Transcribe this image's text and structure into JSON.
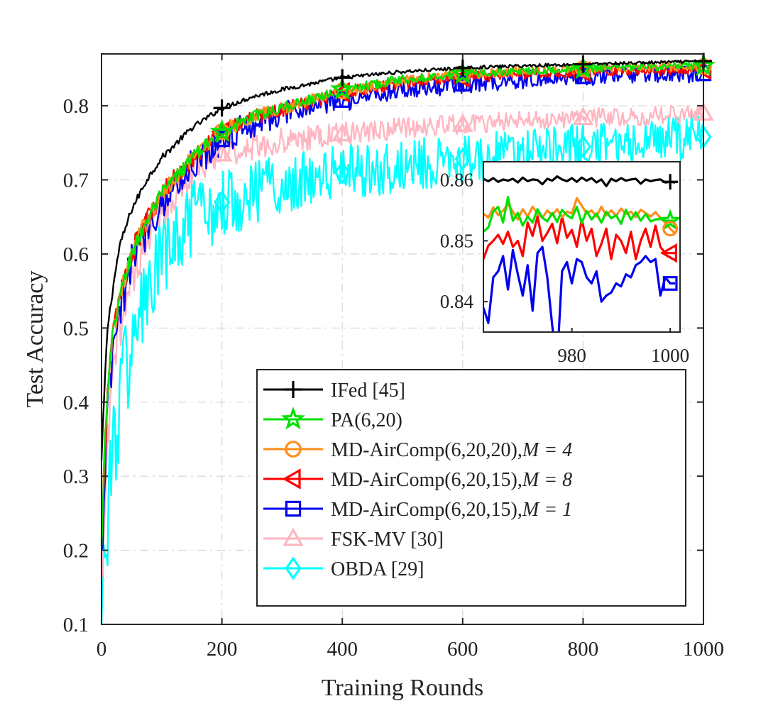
{
  "chart_data": {
    "type": "line",
    "title": "",
    "xlabel": "Training Rounds",
    "ylabel": "Test Accuracy",
    "xlim": [
      0,
      1000
    ],
    "ylim": [
      0.1,
      0.87
    ],
    "xticks": [
      0,
      200,
      400,
      600,
      800,
      1000
    ],
    "xtick_labels": [
      "0",
      "200",
      "400",
      "600",
      "800",
      "1000"
    ],
    "yticks": [
      0.1,
      0.2,
      0.3,
      0.4,
      0.5,
      0.6,
      0.7,
      0.8
    ],
    "ytick_labels": [
      "0.1",
      "0.2",
      "0.3",
      "0.4",
      "0.5",
      "0.6",
      "0.7",
      "0.8"
    ],
    "grid": true,
    "legend_position": "bottom-right",
    "series": [
      {
        "name": "IFed [45]",
        "label_main": "IFed [45]",
        "label_tail": "",
        "color": "#000000",
        "marker": "plus",
        "x": [
          0,
          5,
          10,
          20,
          30,
          50,
          75,
          100,
          150,
          200,
          250,
          300,
          400,
          500,
          600,
          700,
          800,
          900,
          1000
        ],
        "y": [
          0.32,
          0.42,
          0.5,
          0.56,
          0.61,
          0.66,
          0.7,
          0.73,
          0.77,
          0.797,
          0.812,
          0.822,
          0.838,
          0.846,
          0.851,
          0.854,
          0.856,
          0.858,
          0.86
        ],
        "noise": 0.002
      },
      {
        "name": "PA(6,20)",
        "label_main": "PA(6,20)",
        "label_tail": "",
        "color": "#00e000",
        "marker": "star",
        "x": [
          0,
          5,
          10,
          20,
          30,
          50,
          75,
          100,
          150,
          200,
          250,
          300,
          400,
          500,
          600,
          700,
          800,
          900,
          1000
        ],
        "y": [
          0.2,
          0.33,
          0.41,
          0.5,
          0.54,
          0.6,
          0.645,
          0.68,
          0.73,
          0.765,
          0.785,
          0.797,
          0.822,
          0.836,
          0.843,
          0.847,
          0.85,
          0.852,
          0.854
        ],
        "noise": 0.005
      },
      {
        "name": "MD-AirComp(6,20,20),M = 4",
        "label_main": "MD-AirComp(6,20,20),",
        "label_tail": "M = 4",
        "color": "#ff8c1a",
        "marker": "circle",
        "x": [
          0,
          5,
          10,
          20,
          30,
          50,
          75,
          100,
          150,
          200,
          250,
          300,
          400,
          500,
          600,
          700,
          800,
          900,
          1000
        ],
        "y": [
          0.2,
          0.33,
          0.41,
          0.5,
          0.54,
          0.6,
          0.645,
          0.68,
          0.73,
          0.765,
          0.785,
          0.797,
          0.82,
          0.834,
          0.842,
          0.847,
          0.85,
          0.852,
          0.853
        ],
        "noise": 0.006
      },
      {
        "name": "MD-AirComp(6,20,15),M = 8",
        "label_main": "MD-AirComp(6,20,15),",
        "label_tail": "M = 8",
        "color": "#ff0000",
        "marker": "triangle-left",
        "x": [
          0,
          5,
          10,
          20,
          30,
          50,
          75,
          100,
          150,
          200,
          250,
          300,
          400,
          500,
          600,
          700,
          800,
          900,
          1000
        ],
        "y": [
          0.2,
          0.33,
          0.41,
          0.5,
          0.54,
          0.6,
          0.645,
          0.68,
          0.73,
          0.765,
          0.785,
          0.795,
          0.818,
          0.831,
          0.838,
          0.843,
          0.846,
          0.848,
          0.849
        ],
        "noise": 0.007
      },
      {
        "name": "MD-AirComp(6,20,15),M = 1",
        "label_main": "MD-AirComp(6,20,15),",
        "label_tail": "M = 1",
        "color": "#0000ee",
        "marker": "square",
        "x": [
          0,
          5,
          10,
          20,
          30,
          50,
          75,
          100,
          150,
          200,
          250,
          300,
          400,
          500,
          600,
          700,
          800,
          900,
          1000
        ],
        "y": [
          0.18,
          0.3,
          0.38,
          0.47,
          0.52,
          0.59,
          0.635,
          0.67,
          0.72,
          0.755,
          0.775,
          0.788,
          0.808,
          0.822,
          0.83,
          0.836,
          0.84,
          0.842,
          0.844
        ],
        "noise": 0.012
      },
      {
        "name": "FSK-MV [30]",
        "label_main": "FSK-MV [30]",
        "label_tail": "",
        "color": "#ffb6c1",
        "marker": "triangle-up",
        "x": [
          0,
          5,
          10,
          20,
          30,
          50,
          75,
          100,
          150,
          200,
          250,
          300,
          400,
          500,
          600,
          700,
          800,
          900,
          1000
        ],
        "y": [
          0.13,
          0.25,
          0.34,
          0.44,
          0.5,
          0.57,
          0.62,
          0.66,
          0.71,
          0.735,
          0.745,
          0.752,
          0.762,
          0.77,
          0.775,
          0.78,
          0.784,
          0.786,
          0.79
        ],
        "noise": 0.012
      },
      {
        "name": "OBDA [29]",
        "label_main": "OBDA [29]",
        "label_tail": "",
        "color": "#00ffff",
        "marker": "diamond",
        "x": [
          0,
          5,
          10,
          20,
          30,
          50,
          75,
          100,
          150,
          200,
          250,
          300,
          400,
          500,
          600,
          700,
          800,
          900,
          1000
        ],
        "y": [
          0.1,
          0.18,
          0.25,
          0.34,
          0.4,
          0.48,
          0.54,
          0.59,
          0.64,
          0.67,
          0.685,
          0.695,
          0.71,
          0.72,
          0.728,
          0.737,
          0.745,
          0.752,
          0.758
        ],
        "noise": 0.03
      }
    ],
    "markers_at_x": [
      200,
      400,
      600,
      800,
      1000
    ],
    "inset": {
      "xlim": [
        962,
        1002
      ],
      "ylim": [
        0.835,
        0.863
      ],
      "xticks": [
        980,
        1000
      ],
      "xtick_labels": [
        "980",
        "1000"
      ],
      "yticks": [
        0.84,
        0.85,
        0.86
      ],
      "ytick_labels": [
        "0.84",
        "0.85",
        "0.86"
      ],
      "marker_x": 1000,
      "series": [
        {
          "name": "IFed [45]",
          "color": "#000000",
          "marker": "plus",
          "x": [
            962,
            963,
            964,
            965,
            966,
            967,
            968,
            969,
            970,
            971,
            972,
            973,
            974,
            975,
            976,
            977,
            978,
            979,
            980,
            981,
            982,
            983,
            984,
            985,
            986,
            987,
            988,
            989,
            990,
            991,
            992,
            993,
            994,
            995,
            996,
            997,
            998,
            999,
            1000,
            1001
          ],
          "y": [
            0.8602,
            0.8598,
            0.8603,
            0.8597,
            0.8601,
            0.8599,
            0.8602,
            0.8596,
            0.8604,
            0.8598,
            0.8601,
            0.86,
            0.8593,
            0.8602,
            0.8599,
            0.8606,
            0.8601,
            0.8598,
            0.8603,
            0.8597,
            0.8604,
            0.8599,
            0.8603,
            0.8596,
            0.8601,
            0.859,
            0.8602,
            0.8598,
            0.8603,
            0.8599,
            0.8601,
            0.8602,
            0.8594,
            0.8601,
            0.8598,
            0.86,
            0.8601,
            0.8596,
            0.8597,
            0.8596
          ]
        },
        {
          "name": "PA(6,20)",
          "color": "#00e000",
          "marker": "star",
          "x": [
            962,
            963,
            964,
            965,
            966,
            967,
            968,
            969,
            970,
            971,
            972,
            973,
            974,
            975,
            976,
            977,
            978,
            979,
            980,
            981,
            982,
            983,
            984,
            985,
            986,
            987,
            988,
            989,
            990,
            991,
            992,
            993,
            994,
            995,
            996,
            997,
            998,
            999,
            1000,
            1001
          ],
          "y": [
            0.8515,
            0.8522,
            0.8548,
            0.8556,
            0.853,
            0.8572,
            0.8533,
            0.8546,
            0.8525,
            0.854,
            0.853,
            0.8552,
            0.8538,
            0.8532,
            0.8546,
            0.8531,
            0.8551,
            0.8542,
            0.8537,
            0.8556,
            0.8529,
            0.8549,
            0.8535,
            0.8545,
            0.853,
            0.8548,
            0.8537,
            0.8542,
            0.8528,
            0.8551,
            0.8535,
            0.8547,
            0.8533,
            0.8544,
            0.8532,
            0.8535,
            0.8536,
            0.8533,
            0.8533,
            0.8533
          ]
        },
        {
          "name": "MD-AirComp(6,20,20),M = 4",
          "color": "#ff8c1a",
          "marker": "circle",
          "x": [
            962,
            963,
            964,
            965,
            966,
            967,
            968,
            969,
            970,
            971,
            972,
            973,
            974,
            975,
            976,
            977,
            978,
            979,
            980,
            981,
            982,
            983,
            984,
            985,
            986,
            987,
            988,
            989,
            990,
            991,
            992,
            993,
            994,
            995,
            996,
            997,
            998,
            999,
            1000,
            1001
          ],
          "y": [
            0.8545,
            0.8538,
            0.8555,
            0.8542,
            0.855,
            0.856,
            0.8548,
            0.8535,
            0.8552,
            0.854,
            0.8556,
            0.8545,
            0.8538,
            0.855,
            0.8542,
            0.8552,
            0.8539,
            0.8548,
            0.8545,
            0.857,
            0.8558,
            0.8545,
            0.855,
            0.854,
            0.8556,
            0.8542,
            0.855,
            0.8541,
            0.8553,
            0.8544,
            0.8548,
            0.8539,
            0.8551,
            0.8546,
            0.854,
            0.8547,
            0.8538,
            0.853,
            0.852,
            0.8512
          ]
        },
        {
          "name": "MD-AirComp(6,20,15),M = 8",
          "color": "#ff0000",
          "marker": "triangle-left",
          "x": [
            962,
            963,
            964,
            965,
            966,
            967,
            968,
            969,
            970,
            971,
            972,
            973,
            974,
            975,
            976,
            977,
            978,
            979,
            980,
            981,
            982,
            983,
            984,
            985,
            986,
            987,
            988,
            989,
            990,
            991,
            992,
            993,
            994,
            995,
            996,
            997,
            998,
            999,
            1000,
            1001
          ],
          "y": [
            0.847,
            0.8492,
            0.85,
            0.851,
            0.8495,
            0.8515,
            0.849,
            0.85,
            0.8475,
            0.853,
            0.8508,
            0.854,
            0.85,
            0.8513,
            0.8528,
            0.8496,
            0.854,
            0.8505,
            0.8518,
            0.849,
            0.8535,
            0.85,
            0.852,
            0.8475,
            0.8495,
            0.852,
            0.847,
            0.851,
            0.85,
            0.848,
            0.8515,
            0.847,
            0.85,
            0.852,
            0.849,
            0.8525,
            0.849,
            0.848,
            0.848,
            0.848
          ]
        },
        {
          "name": "MD-AirComp(6,20,15),M = 1",
          "color": "#0000ee",
          "marker": "square",
          "x": [
            962,
            963,
            964,
            965,
            966,
            967,
            968,
            969,
            970,
            971,
            972,
            973,
            974,
            975,
            976,
            977,
            978,
            979,
            980,
            981,
            982,
            983,
            984,
            985,
            986,
            987,
            988,
            989,
            990,
            991,
            992,
            993,
            994,
            995,
            996,
            997,
            998,
            999,
            1000,
            1001
          ],
          "y": [
            0.839,
            0.8365,
            0.844,
            0.845,
            0.8475,
            0.842,
            0.8485,
            0.8445,
            0.841,
            0.846,
            0.8385,
            0.848,
            0.849,
            0.844,
            0.836,
            0.83,
            0.845,
            0.8465,
            0.843,
            0.847,
            0.8465,
            0.844,
            0.843,
            0.845,
            0.84,
            0.841,
            0.8415,
            0.843,
            0.8425,
            0.8445,
            0.844,
            0.846,
            0.8465,
            0.8475,
            0.8465,
            0.847,
            0.841,
            0.844,
            0.843,
            0.843
          ]
        }
      ]
    }
  }
}
